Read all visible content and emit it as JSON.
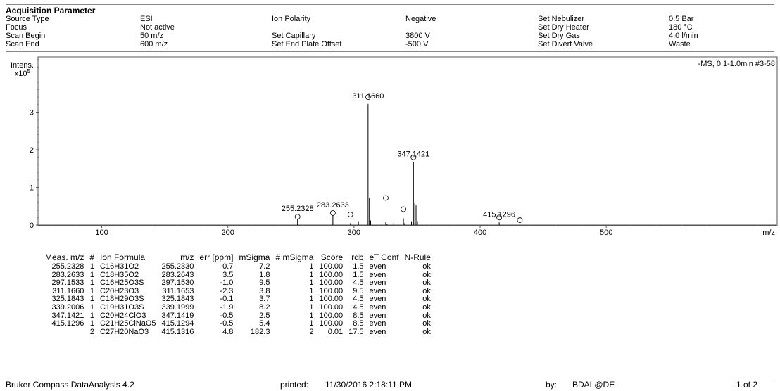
{
  "section_title": "Acquisition Parameter",
  "params": [
    {
      "label": "Source Type",
      "value": "ESI"
    },
    {
      "label": "Focus",
      "value": "Not active"
    },
    {
      "label": "Scan Begin",
      "value": "50 m/z"
    },
    {
      "label": "Scan End",
      "value": "600 m/z"
    },
    {
      "label": "Ion Polarity",
      "value": "Negative"
    },
    {
      "label": "Set Capillary",
      "value": "3800 V"
    },
    {
      "label": "Set End Plate Offset",
      "value": "-500 V"
    },
    {
      "label": "Set Nebulizer",
      "value": "0.5 Bar"
    },
    {
      "label": "Set Dry Heater",
      "value": "180 °C"
    },
    {
      "label": "Set Dry Gas",
      "value": "4.0 l/min"
    },
    {
      "label": "Set Divert Valve",
      "value": "Waste"
    }
  ],
  "chart_data": {
    "type": "bar",
    "title": "-MS, 0.1-1.0min #3-58",
    "ylabel": "Intens.",
    "yscale_label": "x10",
    "yscale_exp": "5",
    "xlabel": "m/z",
    "xlim": [
      50,
      635
    ],
    "ylim": [
      0,
      4.45
    ],
    "xticks": [
      100,
      200,
      300,
      400,
      500
    ],
    "yticks": [
      0,
      1,
      2,
      3
    ],
    "peaks": [
      {
        "x": 255.2328,
        "y": 0.22
      },
      {
        "x": 283.2633,
        "y": 0.32
      },
      {
        "x": 297.1533,
        "y": 0.05
      },
      {
        "x": 303.5,
        "y": 0.1
      },
      {
        "x": 311.166,
        "y": 3.22
      },
      {
        "x": 312.2,
        "y": 0.72
      },
      {
        "x": 313.2,
        "y": 0.12
      },
      {
        "x": 325.1843,
        "y": 0.08
      },
      {
        "x": 326.3,
        "y": 0.03
      },
      {
        "x": 331.5,
        "y": 0.05
      },
      {
        "x": 339.2006,
        "y": 0.18
      },
      {
        "x": 340.2,
        "y": 0.05
      },
      {
        "x": 345.6,
        "y": 0.1
      },
      {
        "x": 347.1421,
        "y": 1.67
      },
      {
        "x": 348.2,
        "y": 0.6
      },
      {
        "x": 349.2,
        "y": 0.52
      },
      {
        "x": 350.3,
        "y": 0.1
      },
      {
        "x": 415.1296,
        "y": 0.07
      }
    ],
    "peak_labels": [
      {
        "x": 255.2328,
        "text": "255.2328"
      },
      {
        "x": 283.2633,
        "text": "283.2633"
      },
      {
        "x": 311.166,
        "text": "311.1660"
      },
      {
        "x": 347.1421,
        "text": "347.1421"
      },
      {
        "x": 415.1296,
        "text": "415.1296"
      }
    ],
    "circle_markers": [
      {
        "x": 255.2328,
        "y": 0.22
      },
      {
        "x": 283.2633,
        "y": 0.32
      },
      {
        "x": 297.1533,
        "y": 0.28
      },
      {
        "x": 311.166,
        "y": 3.4
      },
      {
        "x": 325.1843,
        "y": 0.72
      },
      {
        "x": 339.2006,
        "y": 0.42
      },
      {
        "x": 347.1421,
        "y": 1.8
      },
      {
        "x": 415.1296,
        "y": 0.2
      },
      {
        "x": 431.5,
        "y": 0.13
      }
    ]
  },
  "table": {
    "headers": [
      "Meas. m/z",
      "#",
      "Ion Formula",
      "m/z",
      "err [ppm]",
      "mSigma",
      "# mSigma",
      "Score",
      "rdb",
      "e¯ Conf",
      "N-Rule"
    ],
    "rows": [
      [
        "255.2328",
        "1",
        "C16H31O2",
        "255.2330",
        "0.7",
        "7.2",
        "1",
        "100.00",
        "1.5",
        "even",
        "ok"
      ],
      [
        "283.2633",
        "1",
        "C18H35O2",
        "283.2643",
        "3.5",
        "1.8",
        "1",
        "100.00",
        "1.5",
        "even",
        "ok"
      ],
      [
        "297.1533",
        "1",
        "C16H25O3S",
        "297.1530",
        "-1.0",
        "9.5",
        "1",
        "100.00",
        "4.5",
        "even",
        "ok"
      ],
      [
        "311.1660",
        "1",
        "C20H23O3",
        "311.1653",
        "-2.3",
        "3.8",
        "1",
        "100.00",
        "9.5",
        "even",
        "ok"
      ],
      [
        "325.1843",
        "1",
        "C18H29O3S",
        "325.1843",
        "-0.1",
        "3.7",
        "1",
        "100.00",
        "4.5",
        "even",
        "ok"
      ],
      [
        "339.2006",
        "1",
        "C19H31O3S",
        "339.1999",
        "-1.9",
        "8.2",
        "1",
        "100.00",
        "4.5",
        "even",
        "ok"
      ],
      [
        "347.1421",
        "1",
        "C20H24ClO3",
        "347.1419",
        "-0.5",
        "2.5",
        "1",
        "100.00",
        "8.5",
        "even",
        "ok"
      ],
      [
        "415.1296",
        "1",
        "C21H25ClNaO5",
        "415.1294",
        "-0.5",
        "5.4",
        "1",
        "100.00",
        "8.5",
        "even",
        "ok"
      ],
      [
        "",
        "2",
        "C27H20NaO3",
        "415.1316",
        "4.8",
        "182.3",
        "2",
        "0.01",
        "17.5",
        "even",
        "ok"
      ]
    ]
  },
  "footer": {
    "software": "Bruker Compass DataAnalysis 4.2",
    "printed_label": "printed:",
    "printed_value": "11/30/2016 2:18:11 PM",
    "by_label": "by:",
    "by_value": "BDAL@DE",
    "page": "1 of 2"
  }
}
